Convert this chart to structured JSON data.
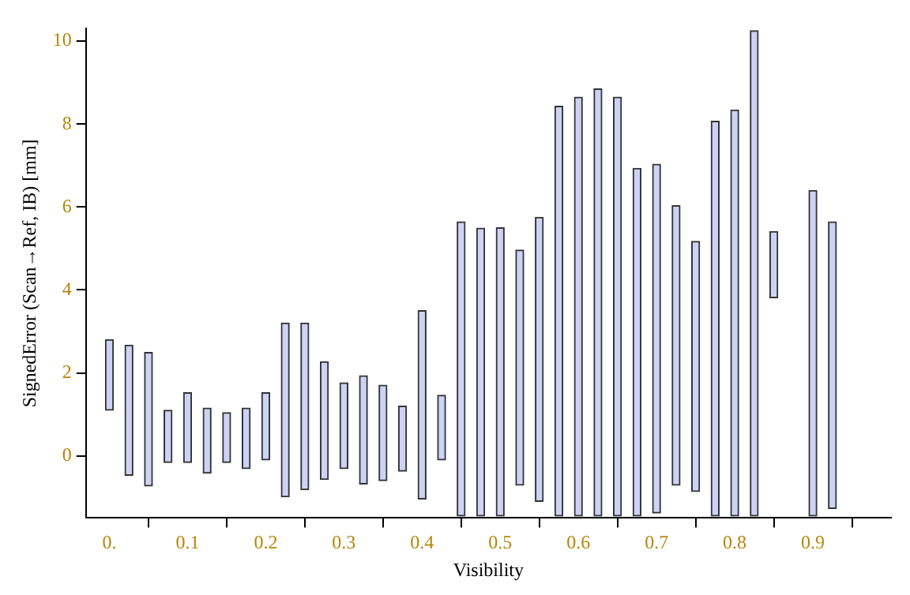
{
  "chart_data": {
    "type": "bar",
    "xlabel": "Visibility",
    "ylabel": "SignedError (Scan→Ref, IB) [mm]",
    "x": [
      0,
      0.025,
      0.05,
      0.075,
      0.1,
      0.125,
      0.15,
      0.175,
      0.2,
      0.225,
      0.25,
      0.275,
      0.3,
      0.325,
      0.35,
      0.375,
      0.4,
      0.425,
      0.45,
      0.475,
      0.5,
      0.525,
      0.55,
      0.575,
      0.6,
      0.625,
      0.65,
      0.675,
      0.7,
      0.725,
      0.75,
      0.775,
      0.8,
      0.825,
      0.85,
      0.9,
      0.925
    ],
    "base": [
      1.1,
      -0.47,
      -0.73,
      -0.16,
      -0.16,
      -0.42,
      -0.16,
      -0.31,
      -0.1,
      -0.99,
      -0.82,
      -0.57,
      -0.31,
      -0.68,
      -0.6,
      -0.37,
      -1.04,
      -0.1,
      -1.45,
      -1.45,
      -1.45,
      -0.71,
      -1.1,
      -1.45,
      -1.45,
      -1.45,
      -1.45,
      -1.45,
      -1.38,
      -0.71,
      -0.86,
      -1.45,
      -1.45,
      -1.45,
      3.81,
      -1.45,
      -1.27
    ],
    "values": [
      1.7,
      3.14,
      3.22,
      1.26,
      1.68,
      1.57,
      1.2,
      1.46,
      1.62,
      4.19,
      4.02,
      2.84,
      2.07,
      2.61,
      2.3,
      1.57,
      4.54,
      1.56,
      7.09,
      6.94,
      6.95,
      5.67,
      6.85,
      9.88,
      10.1,
      10.3,
      10.1,
      8.38,
      8.41,
      6.74,
      6.03,
      9.52,
      9.79,
      11.7,
      1.6,
      7.85,
      6.91
    ],
    "color": "#ccd3f5",
    "xlim": [
      -0.03,
      1.0
    ],
    "xticks": [
      {
        "value": 0,
        "label": "0."
      },
      0.1,
      0.2,
      0.3,
      0.4,
      0.5,
      0.6,
      0.7,
      0.8,
      0.9
    ],
    "ylim": [
      -1.5,
      10.3
    ],
    "yticks": [
      0,
      2,
      4,
      6,
      8,
      10
    ],
    "grid": false,
    "legend": false
  }
}
